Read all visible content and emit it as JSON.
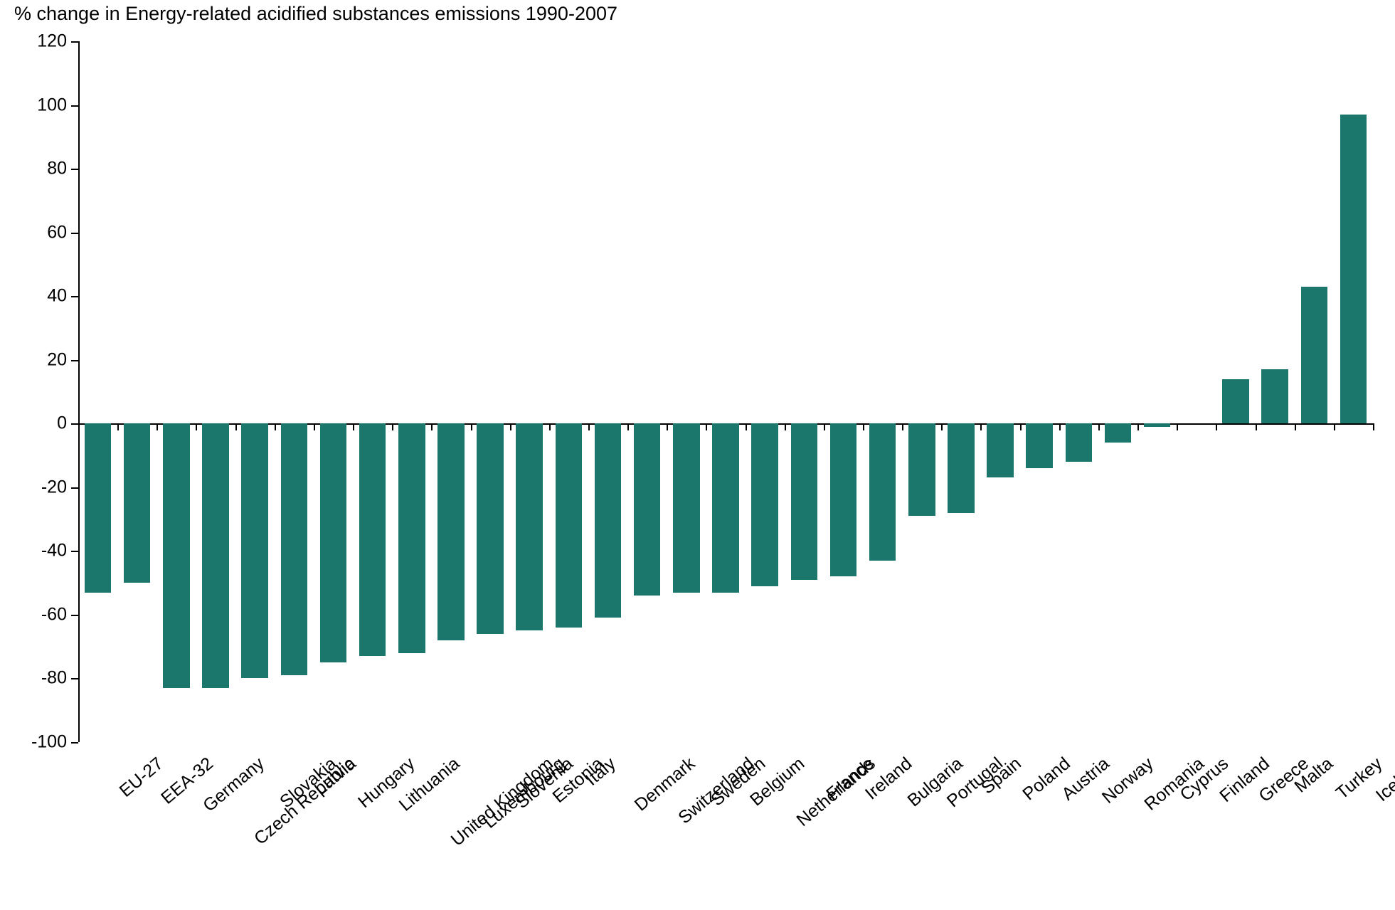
{
  "chart": {
    "type": "bar",
    "title": "% change in Energy-related acidified substances emissions 1990-2007",
    "title_fontsize": 27,
    "title_color": "#000000",
    "background_color": "#ffffff",
    "bar_color": "#1b776b",
    "axis_color": "#000000",
    "text_color": "#000000",
    "label_fontsize": 25,
    "tick_label_fontsize": 25,
    "ylim": [
      -100,
      120
    ],
    "ytick_step": 20,
    "bar_width_ratio": 0.68,
    "categories": [
      "EU-27",
      "EEA-32",
      "Germany",
      "Czech Republic",
      "Slovakia",
      "Latvia",
      "Hungary",
      "Lithuania",
      "United Kingdom",
      "Luxembourg",
      "Slovenia",
      "Estonia",
      "Italy",
      "Denmark",
      "Switzerland",
      "Sweden",
      "Belgium",
      "Netherlands",
      "France",
      "Ireland",
      "Bulgaria",
      "Portugal",
      "Spain",
      "Poland",
      "Austria",
      "Norway",
      "Romania",
      "Cyprus",
      "Finland",
      "Greece",
      "Malta",
      "Turkey",
      "Iceland"
    ],
    "values": [
      -53,
      -50,
      -83,
      -83,
      -80,
      -79,
      -75,
      -73,
      -72,
      -68,
      -66,
      -65,
      -64,
      -61,
      -54,
      -53,
      -53,
      -51,
      -49,
      -48,
      -43,
      -29,
      -28,
      -17,
      -14,
      -12,
      -6,
      -1,
      0,
      14,
      17,
      43,
      97
    ]
  }
}
